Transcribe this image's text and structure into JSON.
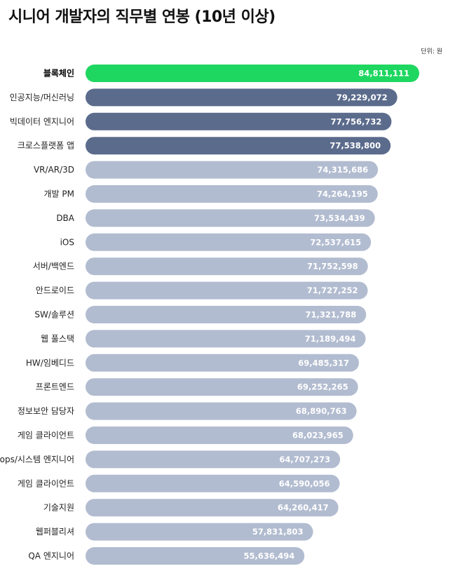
{
  "title": "시니어 개발자의 직무별 연봉 (10년 이상)",
  "unit_label": "단위: 원",
  "colors": {
    "highlight": "#1ed760",
    "dark": "#5b6b8c",
    "light": "#b2bcd0",
    "value_text": "#ffffff"
  },
  "chart_data": {
    "type": "bar",
    "orientation": "horizontal",
    "title": "시니어 개발자의 직무별 연봉 (10년 이상)",
    "unit": "단위: 원",
    "categories": [
      "블록체인",
      "인공지능/머신러닝",
      "빅데이터 엔지니어",
      "크로스플랫폼 앱",
      "VR/AR/3D",
      "개발 PM",
      "DBA",
      "iOS",
      "서버/백엔드",
      "안드로이드",
      "SW/솔루션",
      "웹 풀스택",
      "HW/임베디드",
      "프론트엔드",
      "정보보안 담당자",
      "게임 클라이언트",
      "ops/시스템 엔지니어",
      "게임 클라이언트",
      "기술지원",
      "웹퍼블리셔",
      "QA 엔지니어"
    ],
    "values": [
      84811111,
      79229072,
      77756732,
      77538800,
      74315686,
      74264195,
      73534439,
      72537615,
      71752598,
      71727252,
      71321788,
      71189494,
      69485317,
      69252265,
      68890763,
      68023965,
      64707273,
      64590056,
      64260417,
      57831803,
      55636494
    ],
    "value_labels": [
      "84,811,111",
      "79,229,072",
      "77,756,732",
      "77,538,800",
      "74,315,686",
      "74,264,195",
      "73,534,439",
      "72,537,615",
      "71,752,598",
      "71,727,252",
      "71,321,788",
      "71,189,494",
      "69,485,317",
      "69,252,265",
      "68,890,763",
      "68,023,965",
      "64,707,273",
      "64,590,056",
      "64,260,417",
      "57,831,803",
      "55,636,494"
    ],
    "bar_color_groups": [
      "highlight",
      "dark",
      "dark",
      "dark",
      "light",
      "light",
      "light",
      "light",
      "light",
      "light",
      "light",
      "light",
      "light",
      "light",
      "light",
      "light",
      "light",
      "light",
      "light",
      "light",
      "light"
    ],
    "xlim": [
      0,
      84811111
    ],
    "grid": false,
    "legend": "none"
  }
}
